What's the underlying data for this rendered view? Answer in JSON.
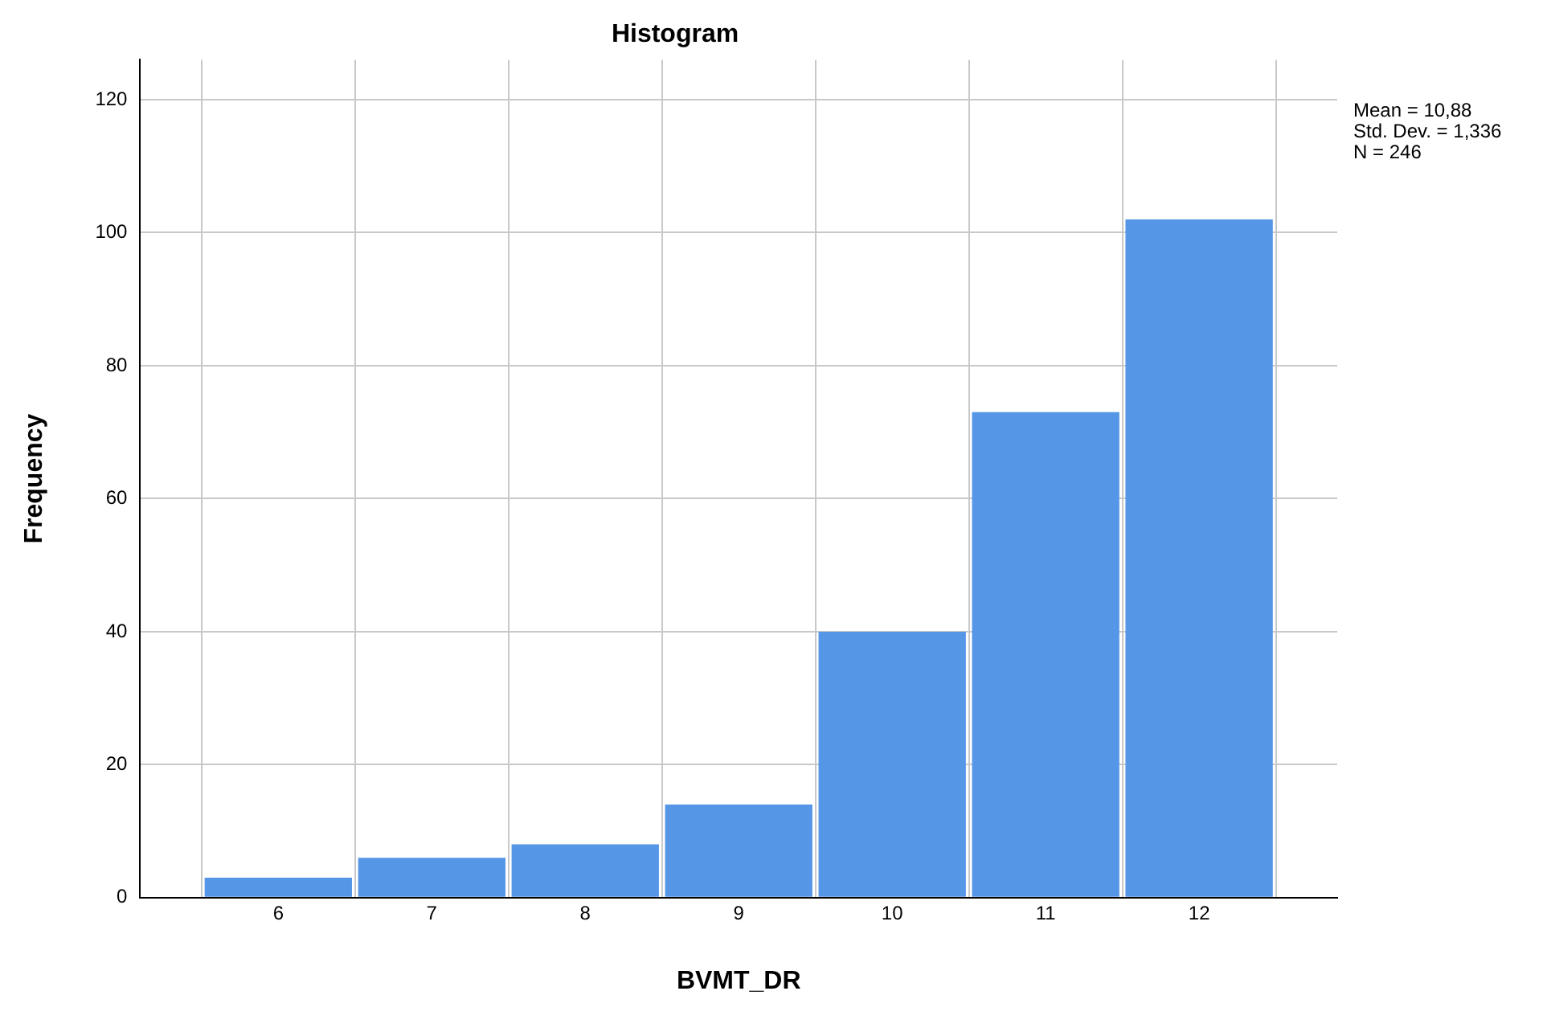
{
  "chart_data": {
    "type": "histogram",
    "title": "Histogram",
    "xlabel": "BVMT_DR",
    "ylabel": "Frequency",
    "bins": [
      5.5,
      6.5,
      7.5,
      8.5,
      9.5,
      10.5,
      11.5,
      12.5
    ],
    "values": [
      3,
      6,
      8,
      14,
      40,
      73,
      102
    ],
    "color": "#5596e6",
    "xlim": [
      5.1,
      12.9
    ],
    "xticks": [
      6,
      7,
      8,
      9,
      10,
      11,
      12
    ],
    "ylim": [
      0,
      126
    ],
    "yticks": [
      0,
      20,
      40,
      60,
      80,
      100,
      120
    ],
    "grid": true,
    "legend": false,
    "annotations": [
      "Mean = 10,88",
      "Std. Dev. = 1,336",
      "N = 246"
    ]
  }
}
